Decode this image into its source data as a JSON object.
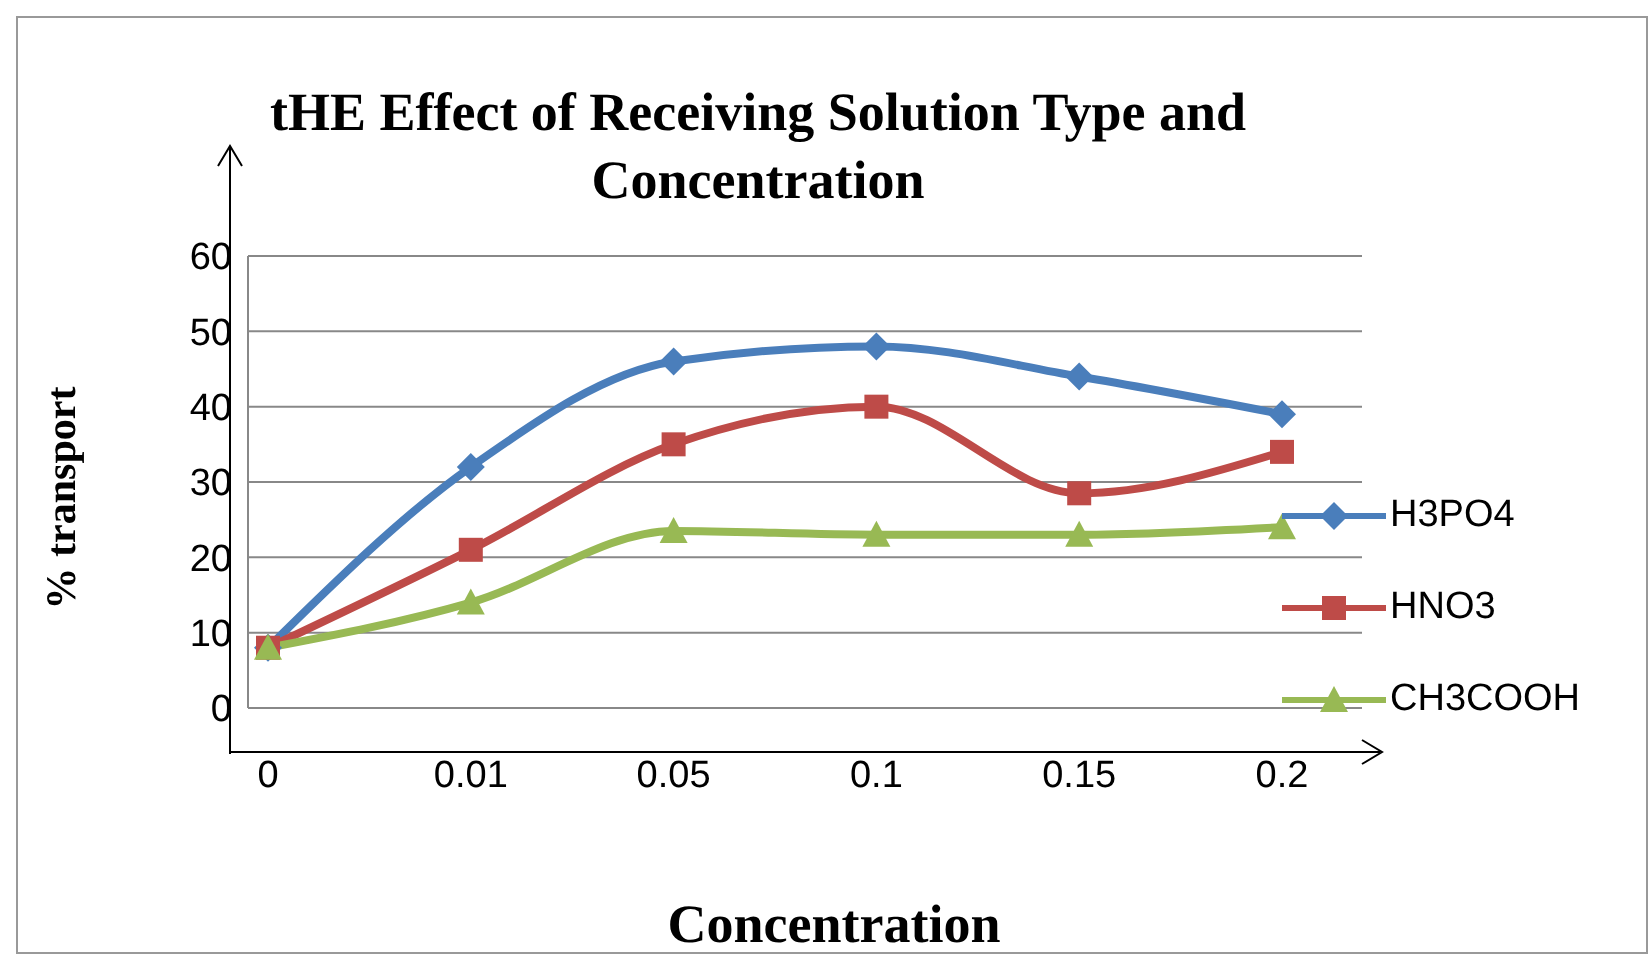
{
  "chart_data": {
    "type": "line",
    "title": "tHE Effect of Receiving Solution Type and Concentration",
    "xlabel": "Concentration",
    "ylabel": "% transport",
    "categories": [
      "0",
      "0.01",
      "0.05",
      "0.1",
      "0.15",
      "0.2"
    ],
    "series": [
      {
        "name": "H3PO4",
        "color": "#4a7ebb",
        "marker": "diamond",
        "values": [
          8,
          32,
          46,
          48,
          44,
          39
        ]
      },
      {
        "name": "HNO3",
        "color": "#be4b48",
        "marker": "square",
        "values": [
          8,
          21,
          35,
          40,
          28.5,
          34
        ]
      },
      {
        "name": "CH3COOH",
        "color": "#98b954",
        "marker": "triangle",
        "values": [
          8,
          14,
          23.5,
          23,
          23,
          24
        ]
      }
    ],
    "ylim": [
      0,
      60
    ],
    "yticks": [
      0,
      10,
      20,
      30,
      40,
      50,
      60
    ],
    "grid": "y",
    "legend": "right"
  }
}
